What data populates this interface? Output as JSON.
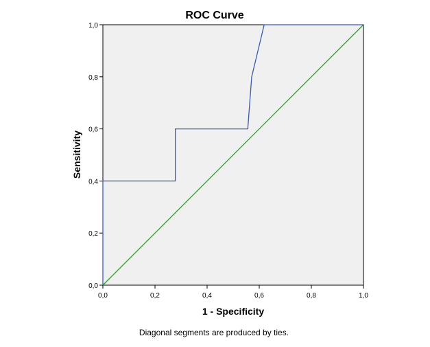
{
  "chart_data": {
    "type": "line",
    "title": "ROC Curve",
    "xlabel": "1 - Specificity",
    "ylabel": "Sensitivity",
    "xlim": [
      0,
      1
    ],
    "ylim": [
      0,
      1
    ],
    "x_ticks": [
      "0,0",
      "0,2",
      "0,4",
      "0,6",
      "0,8",
      "1,0"
    ],
    "y_ticks": [
      "0,0",
      "0,2",
      "0,4",
      "0,6",
      "0,8",
      "1,0"
    ],
    "x_tick_values": [
      0,
      0.2,
      0.4,
      0.6,
      0.8,
      1.0
    ],
    "y_tick_values": [
      0,
      0.2,
      0.4,
      0.6,
      0.8,
      1.0
    ],
    "grid": false,
    "background_color": "#f0f0f0",
    "series": [
      {
        "color": "#3c58b0",
        "x": [
          0.0,
          0.0,
          0.278,
          0.278,
          0.556,
          0.571,
          0.619,
          1.0
        ],
        "y": [
          0.0,
          0.4,
          0.4,
          0.6,
          0.6,
          0.8,
          1.0,
          1.0
        ]
      },
      {
        "color": "#2ca02c",
        "x": [
          0.0,
          1.0
        ],
        "y": [
          0.0,
          1.0
        ]
      }
    ],
    "footnote": "Diagonal segments are produced by ties."
  }
}
